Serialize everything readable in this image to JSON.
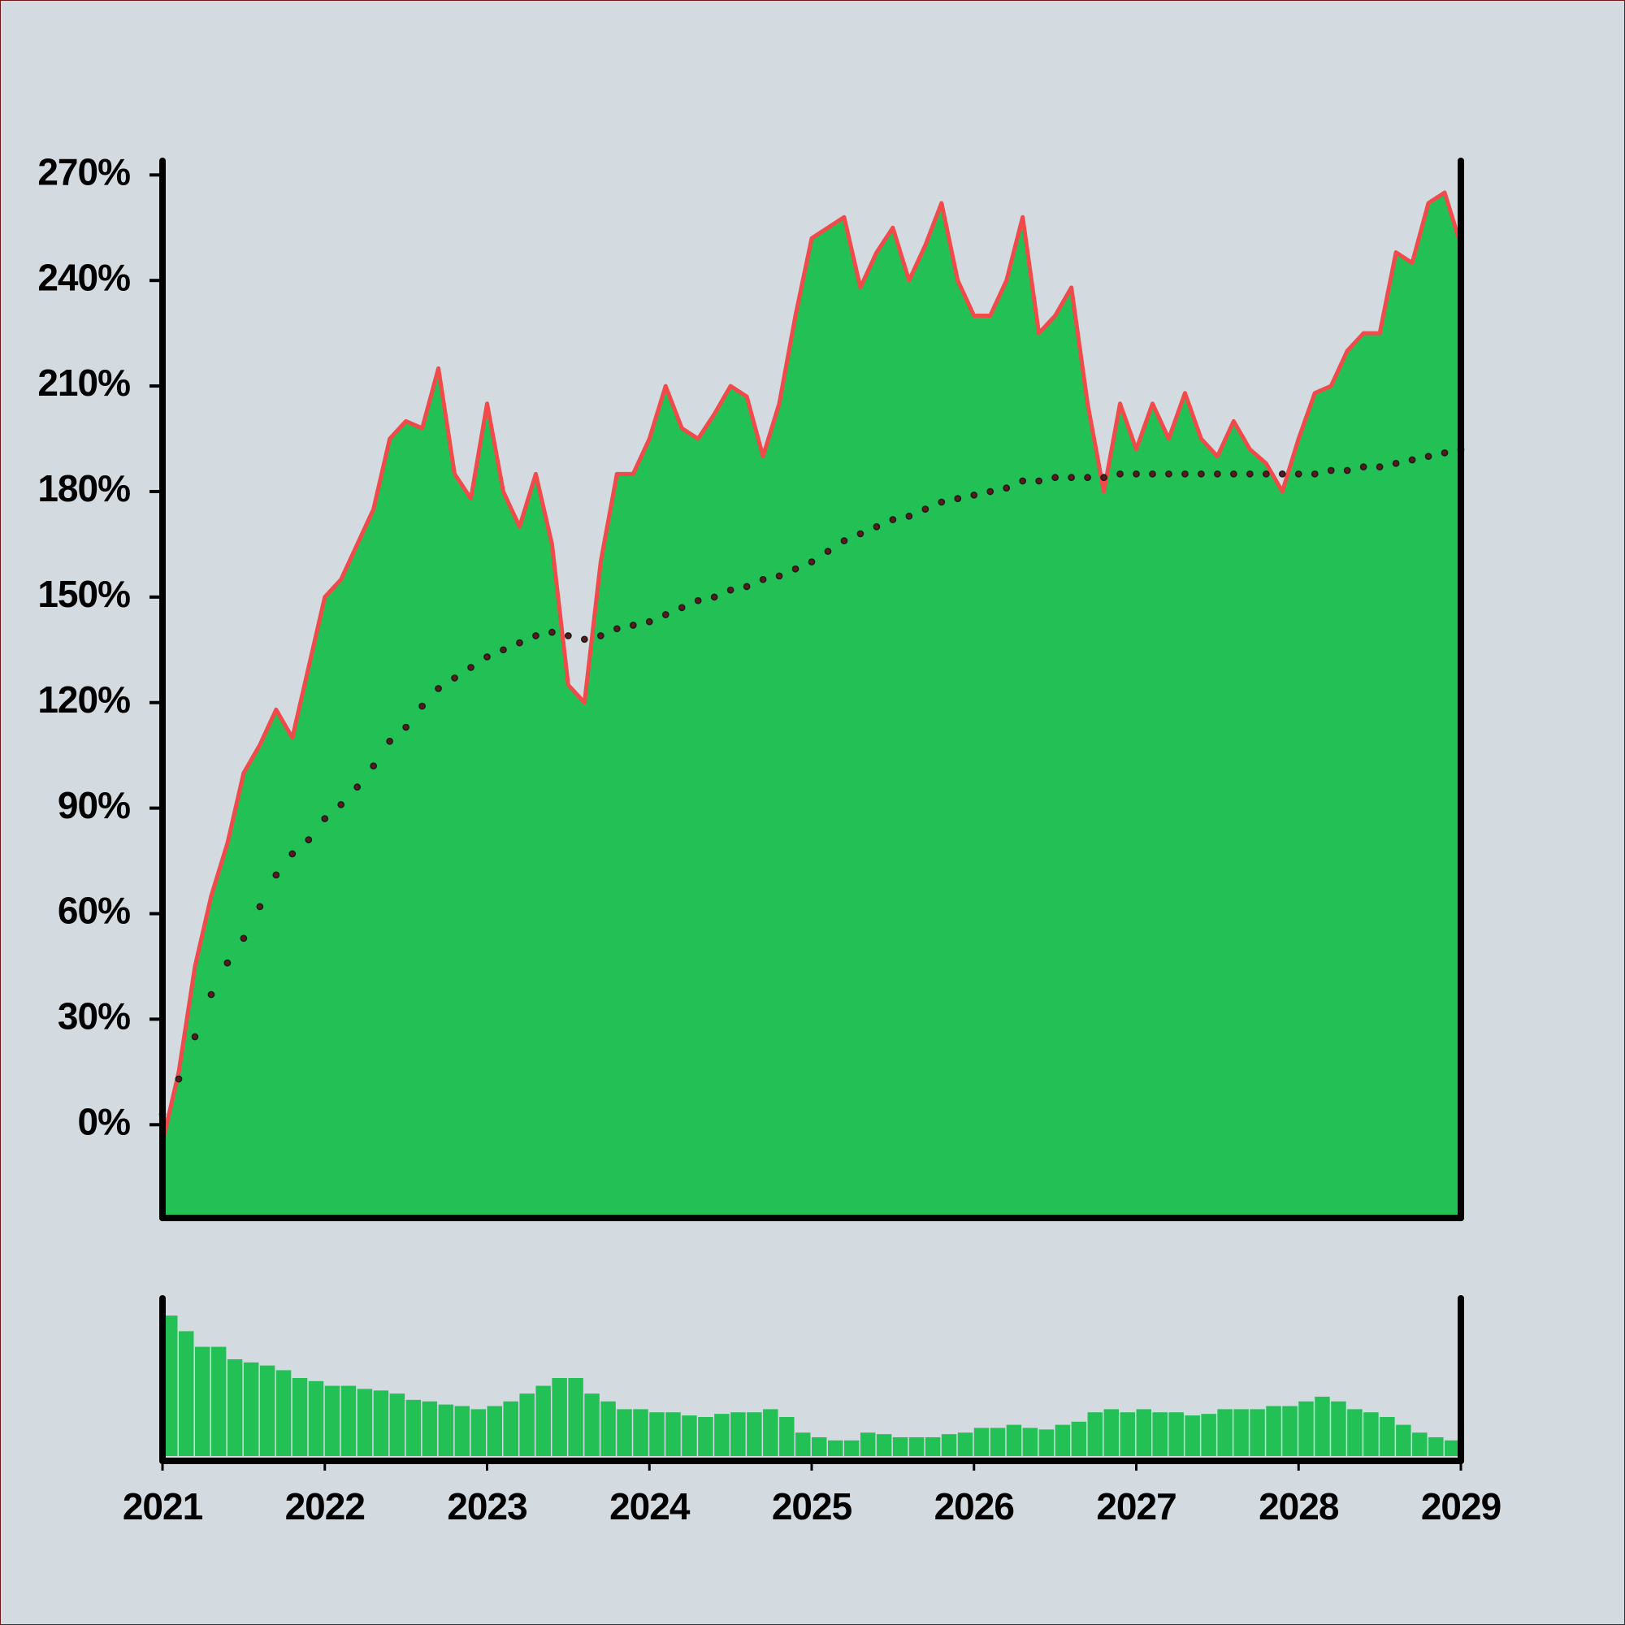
{
  "chart_data": [
    {
      "type": "area",
      "x": [
        2021.0,
        2021.1,
        2021.2,
        2021.3,
        2021.4,
        2021.5,
        2021.6,
        2021.7,
        2021.8,
        2021.9,
        2022.0,
        2022.1,
        2022.2,
        2022.3,
        2022.4,
        2022.5,
        2022.6,
        2022.7,
        2022.8,
        2022.9,
        2023.0,
        2023.1,
        2023.2,
        2023.3,
        2023.4,
        2023.5,
        2023.6,
        2023.7,
        2023.8,
        2023.9,
        2024.0,
        2024.1,
        2024.2,
        2024.3,
        2024.4,
        2024.5,
        2024.6,
        2024.7,
        2024.8,
        2024.9,
        2025.0,
        2025.1,
        2025.2,
        2025.3,
        2025.4,
        2025.5,
        2025.6,
        2025.7,
        2025.8,
        2025.9,
        2026.0,
        2026.1,
        2026.2,
        2026.3,
        2026.4,
        2026.5,
        2026.6,
        2026.7,
        2026.8,
        2026.9,
        2027.0,
        2027.1,
        2027.2,
        2027.3,
        2027.4,
        2027.5,
        2027.6,
        2027.7,
        2027.8,
        2027.9,
        2028.0,
        2028.1,
        2028.2,
        2028.3,
        2028.4,
        2028.5,
        2028.6,
        2028.7,
        2028.8,
        2028.9,
        2029.0
      ],
      "series": [
        {
          "type": "area",
          "color": "#22c055",
          "line_color": "#f04a4a",
          "values": [
            -5,
            15,
            45,
            65,
            80,
            100,
            108,
            118,
            110,
            130,
            150,
            155,
            165,
            175,
            195,
            200,
            198,
            215,
            185,
            178,
            205,
            180,
            170,
            185,
            165,
            125,
            120,
            160,
            185,
            185,
            195,
            210,
            198,
            195,
            202,
            210,
            207,
            190,
            205,
            230,
            252,
            255,
            258,
            238,
            248,
            255,
            240,
            250,
            262,
            240,
            230,
            230,
            240,
            258,
            225,
            230,
            238,
            205,
            180,
            205,
            192,
            205,
            195,
            208,
            195,
            190,
            200,
            192,
            188,
            180,
            195,
            208,
            210,
            220,
            225,
            225,
            248,
            245,
            262,
            265,
            250
          ]
        },
        {
          "type": "dots",
          "color": "#1a1a1a",
          "values": [
            3,
            13,
            25,
            37,
            46,
            53,
            62,
            71,
            77,
            81,
            87,
            91,
            96,
            102,
            109,
            113,
            119,
            124,
            127,
            130,
            133,
            135,
            137,
            139,
            140,
            139,
            138,
            139,
            141,
            142,
            143,
            145,
            147,
            149,
            150,
            152,
            153,
            155,
            156,
            158,
            160,
            163,
            166,
            168,
            170,
            172,
            173,
            175,
            177,
            178,
            179,
            180,
            181,
            183,
            183,
            184,
            184,
            184,
            184,
            185,
            185,
            185,
            185,
            185,
            185,
            185,
            185,
            185,
            185,
            185,
            185,
            185,
            186,
            186,
            187,
            187,
            188,
            189,
            190,
            191,
            192
          ]
        }
      ],
      "xlim": [
        2021,
        2029
      ],
      "ylim": [
        -26.5,
        274
      ],
      "yticks": [
        {
          "value": 0,
          "label": "0%"
        },
        {
          "value": 30,
          "label": "30%"
        },
        {
          "value": 60,
          "label": "60%"
        },
        {
          "value": 90,
          "label": "90%"
        },
        {
          "value": 120,
          "label": "120%"
        },
        {
          "value": 150,
          "label": "150%"
        },
        {
          "value": 180,
          "label": "180%"
        },
        {
          "value": 210,
          "label": "210%"
        },
        {
          "value": 240,
          "label": "240%"
        },
        {
          "value": 270,
          "label": "270%"
        }
      ]
    },
    {
      "type": "bar",
      "x": [
        2021.0,
        2021.1,
        2021.2,
        2021.3,
        2021.4,
        2021.5,
        2021.6,
        2021.7,
        2021.8,
        2021.9,
        2022.0,
        2022.1,
        2022.2,
        2022.3,
        2022.4,
        2022.5,
        2022.6,
        2022.7,
        2022.8,
        2022.9,
        2023.0,
        2023.1,
        2023.2,
        2023.3,
        2023.4,
        2023.5,
        2023.6,
        2023.7,
        2023.8,
        2023.9,
        2024.0,
        2024.1,
        2024.2,
        2024.3,
        2024.4,
        2024.5,
        2024.6,
        2024.7,
        2024.8,
        2024.9,
        2025.0,
        2025.1,
        2025.2,
        2025.3,
        2025.4,
        2025.5,
        2025.6,
        2025.7,
        2025.8,
        2025.9,
        2026.0,
        2026.1,
        2026.2,
        2026.3,
        2026.4,
        2026.5,
        2026.6,
        2026.7,
        2026.8,
        2026.9,
        2027.0,
        2027.1,
        2027.2,
        2027.3,
        2027.4,
        2027.5,
        2027.6,
        2027.7,
        2027.8,
        2027.9,
        2028.0,
        2028.1,
        2028.2,
        2028.3,
        2028.4,
        2028.5,
        2028.6,
        2028.7,
        2028.8,
        2028.9
      ],
      "values": [
        90,
        80,
        70,
        70,
        62,
        60,
        58,
        55,
        50,
        48,
        45,
        45,
        43,
        42,
        40,
        36,
        35,
        33,
        32,
        30,
        32,
        35,
        40,
        45,
        50,
        50,
        40,
        35,
        30,
        30,
        28,
        28,
        26,
        25,
        27,
        28,
        28,
        30,
        25,
        15,
        12,
        10,
        10,
        15,
        14,
        12,
        12,
        12,
        14,
        15,
        18,
        18,
        20,
        18,
        17,
        20,
        22,
        28,
        30,
        28,
        30,
        28,
        28,
        26,
        27,
        30,
        30,
        30,
        32,
        32,
        35,
        38,
        35,
        30,
        28,
        25,
        20,
        15,
        12,
        10
      ],
      "color": "#22c055",
      "xlim": [
        2021,
        2029
      ],
      "ylim": [
        0,
        100
      ],
      "xticks": [
        2021,
        2022,
        2023,
        2024,
        2025,
        2026,
        2027,
        2028,
        2029
      ]
    }
  ]
}
